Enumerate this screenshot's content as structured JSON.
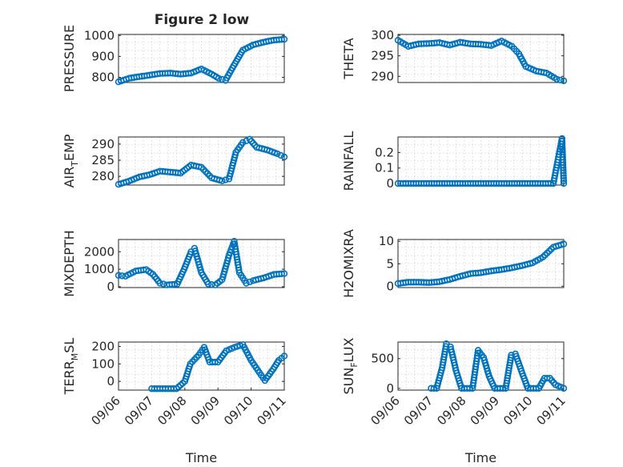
{
  "figure": {
    "title": "Figure 2 low",
    "background": "#ffffff",
    "marker_color": "#0072bd",
    "grid": true,
    "marker": "circle-open"
  },
  "chart_data": [
    {
      "type": "scatter",
      "ylabel": "PRESSURE",
      "ylim": [
        775,
        1005
      ],
      "yticks": [
        800,
        900,
        1000
      ],
      "ytick_labels": [
        "800",
        "900",
        "1000"
      ],
      "xlim": [
        "09/07 00:00",
        "09/11 00:00"
      ],
      "xticks": [],
      "xlabel": "",
      "points": [
        [
          "09/07 00:00",
          778
        ],
        [
          "09/07 06:00",
          795
        ],
        [
          "09/07 12:00",
          803
        ],
        [
          "09/07 18:00",
          810
        ],
        [
          "09/08 00:00",
          818
        ],
        [
          "09/08 06:00",
          820
        ],
        [
          "09/08 12:00",
          815
        ],
        [
          "09/08 18:00",
          820
        ],
        [
          "09/09 00:00",
          840
        ],
        [
          "09/09 06:00",
          815
        ],
        [
          "09/09 10:00",
          795
        ],
        [
          "09/09 14:00",
          785
        ],
        [
          "09/09 18:00",
          845
        ],
        [
          "09/10 00:00",
          930
        ],
        [
          "09/10 06:00",
          955
        ],
        [
          "09/10 12:00",
          968
        ],
        [
          "09/10 18:00",
          978
        ],
        [
          "09/11 00:00",
          982
        ]
      ]
    },
    {
      "type": "scatter",
      "ylabel": "THETA",
      "ylim": [
        288.5,
        300.2
      ],
      "yticks": [
        290,
        295,
        300
      ],
      "ytick_labels": [
        "290",
        "295",
        "300"
      ],
      "xlim": [
        "09/07 00:00",
        "09/11 00:00"
      ],
      "xticks": [],
      "xlabel": "",
      "points": [
        [
          "09/07 00:00",
          298.8
        ],
        [
          "09/07 06:00",
          297.3
        ],
        [
          "09/07 12:00",
          297.9
        ],
        [
          "09/07 18:00",
          298.0
        ],
        [
          "09/08 00:00",
          298.2
        ],
        [
          "09/08 06:00",
          297.6
        ],
        [
          "09/08 12:00",
          298.3
        ],
        [
          "09/08 18:00",
          297.9
        ],
        [
          "09/09 00:00",
          297.8
        ],
        [
          "09/09 06:00",
          297.5
        ],
        [
          "09/09 12:00",
          298.6
        ],
        [
          "09/09 18:00",
          297.3
        ],
        [
          "09/09 22:00",
          295.5
        ],
        [
          "09/10 02:00",
          292.4
        ],
        [
          "09/10 08:00",
          291.3
        ],
        [
          "09/10 14:00",
          290.8
        ],
        [
          "09/10 20:00",
          289.3
        ],
        [
          "09/11 00:00",
          288.9
        ]
      ]
    },
    {
      "type": "scatter",
      "ylabel": "AIR",
      "ylabel_sub": "T",
      "ylabel_tail": "EMP",
      "ylim": [
        277.3,
        292.2
      ],
      "yticks": [
        280,
        285,
        290
      ],
      "ytick_labels": [
        "280",
        "285",
        "290"
      ],
      "xlim": [
        "09/07 00:00",
        "09/11 00:00"
      ],
      "xticks": [],
      "xlabel": "",
      "points": [
        [
          "09/07 00:00",
          277.5
        ],
        [
          "09/07 06:00",
          278.5
        ],
        [
          "09/07 12:00",
          279.8
        ],
        [
          "09/07 18:00",
          280.5
        ],
        [
          "09/08 00:00",
          281.6
        ],
        [
          "09/08 06:00",
          281.3
        ],
        [
          "09/08 12:00",
          281.0
        ],
        [
          "09/08 18:00",
          283.5
        ],
        [
          "09/09 00:00",
          282.8
        ],
        [
          "09/09 06:00",
          279.5
        ],
        [
          "09/09 12:00",
          278.6
        ],
        [
          "09/09 16:00",
          279.2
        ],
        [
          "09/09 20:00",
          287.5
        ],
        [
          "09/10 00:00",
          290.5
        ],
        [
          "09/10 04:00",
          291.5
        ],
        [
          "09/10 08:00",
          289.0
        ],
        [
          "09/10 14:00",
          288.2
        ],
        [
          "09/10 20:00",
          287.0
        ],
        [
          "09/11 00:00",
          286.0
        ]
      ]
    },
    {
      "type": "scatter",
      "ylabel": "RAINFALL",
      "ylim": [
        -0.01,
        0.3
      ],
      "yticks": [
        0,
        0.1,
        0.2
      ],
      "ytick_labels": [
        "0",
        "0.1",
        "0.2"
      ],
      "xlim": [
        "09/07 00:00",
        "09/11 00:00"
      ],
      "xticks": [],
      "xlabel": "",
      "points": [
        [
          "09/07 00:00",
          0
        ],
        [
          "09/07 06:00",
          0
        ],
        [
          "09/07 12:00",
          0
        ],
        [
          "09/07 18:00",
          0
        ],
        [
          "09/08 00:00",
          0
        ],
        [
          "09/08 06:00",
          0
        ],
        [
          "09/08 12:00",
          0
        ],
        [
          "09/08 18:00",
          0
        ],
        [
          "09/09 00:00",
          0
        ],
        [
          "09/09 06:00",
          0
        ],
        [
          "09/09 12:00",
          0
        ],
        [
          "09/09 18:00",
          0
        ],
        [
          "09/10 00:00",
          0
        ],
        [
          "09/10 06:00",
          0
        ],
        [
          "09/10 12:00",
          0
        ],
        [
          "09/10 18:00",
          0
        ],
        [
          "09/10 23:00",
          0.29
        ],
        [
          "09/11 00:00",
          0
        ]
      ]
    },
    {
      "type": "scatter",
      "ylabel": "MIXDEPTH",
      "ylim": [
        -50,
        2700
      ],
      "yticks": [
        0,
        1000,
        2000
      ],
      "ytick_labels": [
        "0",
        "1000",
        "2000"
      ],
      "xlim": [
        "09/07 00:00",
        "09/11 00:00"
      ],
      "xticks": [],
      "xlabel": "",
      "points": [
        [
          "09/07 00:00",
          650
        ],
        [
          "09/07 04:00",
          600
        ],
        [
          "09/07 10:00",
          900
        ],
        [
          "09/07 16:00",
          980
        ],
        [
          "09/07 20:00",
          700
        ],
        [
          "09/08 00:00",
          200
        ],
        [
          "09/08 04:00",
          100
        ],
        [
          "09/08 10:00",
          150
        ],
        [
          "09/08 14:00",
          1000
        ],
        [
          "09/08 18:00",
          2000
        ],
        [
          "09/08 20:00",
          2200
        ],
        [
          "09/09 00:00",
          800
        ],
        [
          "09/09 04:00",
          150
        ],
        [
          "09/09 08:00",
          100
        ],
        [
          "09/09 12:00",
          400
        ],
        [
          "09/09 16:00",
          1800
        ],
        [
          "09/09 19:00",
          2600
        ],
        [
          "09/09 22:00",
          800
        ],
        [
          "09/10 02:00",
          200
        ],
        [
          "09/10 06:00",
          350
        ],
        [
          "09/10 12:00",
          500
        ],
        [
          "09/10 18:00",
          700
        ],
        [
          "09/11 00:00",
          750
        ]
      ]
    },
    {
      "type": "scatter",
      "ylabel": "H2OMIXRA",
      "ylim": [
        -0.3,
        10.4
      ],
      "yticks": [
        0,
        5,
        10
      ],
      "ytick_labels": [
        "0",
        "5",
        "10"
      ],
      "xlim": [
        "09/07 00:00",
        "09/11 00:00"
      ],
      "xticks": [],
      "xlabel": "",
      "points": [
        [
          "09/07 00:00",
          0.6
        ],
        [
          "09/07 06:00",
          0.9
        ],
        [
          "09/07 12:00",
          0.9
        ],
        [
          "09/07 18:00",
          0.8
        ],
        [
          "09/08 00:00",
          1.0
        ],
        [
          "09/08 06:00",
          1.5
        ],
        [
          "09/08 12:00",
          2.2
        ],
        [
          "09/08 18:00",
          2.8
        ],
        [
          "09/09 00:00",
          3.0
        ],
        [
          "09/09 06:00",
          3.4
        ],
        [
          "09/09 12:00",
          3.7
        ],
        [
          "09/09 18:00",
          4.1
        ],
        [
          "09/10 00:00",
          4.6
        ],
        [
          "09/10 06:00",
          5.2
        ],
        [
          "09/10 12:00",
          6.5
        ],
        [
          "09/10 18:00",
          8.7
        ],
        [
          "09/11 00:00",
          9.4
        ]
      ]
    },
    {
      "type": "scatter",
      "ylabel": "TERR",
      "ylabel_sub": "M",
      "ylabel_tail": "SL",
      "ylim": [
        -50,
        225
      ],
      "yticks": [
        0,
        100,
        200
      ],
      "ytick_labels": [
        "0",
        "100",
        "200"
      ],
      "xlim": [
        "09/06 00:00",
        "09/11 00:00"
      ],
      "xticks": [
        "09/06 00:00",
        "09/07 00:00",
        "09/08 00:00",
        "09/09 00:00",
        "09/10 00:00",
        "09/11 00:00"
      ],
      "xtick_labels": [
        "09/06",
        "09/07",
        "09/08",
        "09/09",
        "09/10",
        "09/11"
      ],
      "xlabel": "Time",
      "points": [
        [
          "09/07 00:00",
          -42
        ],
        [
          "09/07 06:00",
          -42
        ],
        [
          "09/07 12:00",
          -42
        ],
        [
          "09/07 18:00",
          -42
        ],
        [
          "09/08 00:00",
          0
        ],
        [
          "09/08 04:00",
          100
        ],
        [
          "09/08 10:00",
          150
        ],
        [
          "09/08 14:00",
          195
        ],
        [
          "09/08 18:00",
          110
        ],
        [
          "09/09 00:00",
          110
        ],
        [
          "09/09 06:00",
          175
        ],
        [
          "09/09 12:00",
          195
        ],
        [
          "09/09 18:00",
          210
        ],
        [
          "09/10 00:00",
          120
        ],
        [
          "09/10 06:00",
          50
        ],
        [
          "09/10 10:00",
          5
        ],
        [
          "09/10 16:00",
          70
        ],
        [
          "09/10 20:00",
          120
        ],
        [
          "09/11 00:00",
          145
        ]
      ]
    },
    {
      "type": "scatter",
      "ylabel": "SUN",
      "ylabel_sub": "F",
      "ylabel_tail": "LUX",
      "ylim": [
        -30,
        780
      ],
      "yticks": [
        0,
        500
      ],
      "ytick_labels": [
        "0",
        "500"
      ],
      "xlim": [
        "09/06 00:00",
        "09/11 00:00"
      ],
      "xticks": [
        "09/06 00:00",
        "09/07 00:00",
        "09/08 00:00",
        "09/09 00:00",
        "09/10 00:00",
        "09/11 00:00"
      ],
      "xtick_labels": [
        "09/06",
        "09/07",
        "09/08",
        "09/09",
        "09/10",
        "09/11"
      ],
      "xlabel": "Time",
      "points": [
        [
          "09/07 00:00",
          0
        ],
        [
          "09/07 04:00",
          0
        ],
        [
          "09/07 08:00",
          350
        ],
        [
          "09/07 11:00",
          750
        ],
        [
          "09/07 14:00",
          700
        ],
        [
          "09/07 18:00",
          300
        ],
        [
          "09/07 22:00",
          0
        ],
        [
          "09/08 06:00",
          0
        ],
        [
          "09/08 10:00",
          640
        ],
        [
          "09/08 14:00",
          520
        ],
        [
          "09/08 18:00",
          200
        ],
        [
          "09/08 22:00",
          0
        ],
        [
          "09/09 06:00",
          0
        ],
        [
          "09/09 10:00",
          560
        ],
        [
          "09/09 13:00",
          580
        ],
        [
          "09/09 18:00",
          250
        ],
        [
          "09/09 22:00",
          0
        ],
        [
          "09/10 06:00",
          0
        ],
        [
          "09/10 10:00",
          170
        ],
        [
          "09/10 14:00",
          170
        ],
        [
          "09/10 18:00",
          60
        ],
        [
          "09/11 00:00",
          0
        ]
      ]
    }
  ]
}
